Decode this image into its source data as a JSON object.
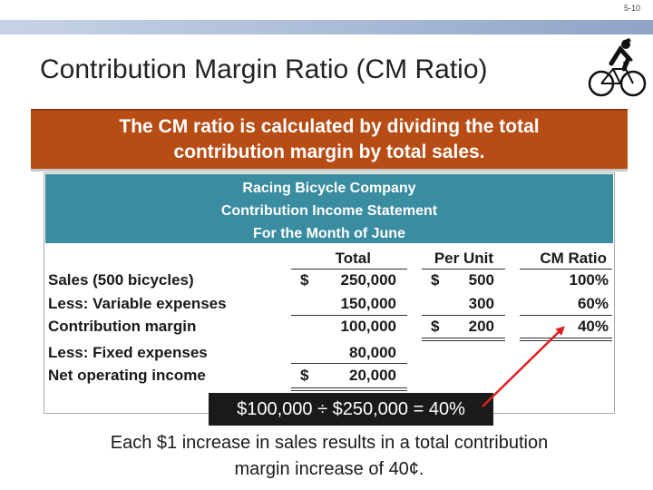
{
  "slide_number": "5-10",
  "title": "Contribution Margin Ratio (CM Ratio)",
  "callout": {
    "line1": "The CM ratio is calculated by dividing the total",
    "line2": "contribution margin by total sales."
  },
  "statement": {
    "company": "Racing Bicycle Company",
    "subtitle": "Contribution Income Statement",
    "period": "For the Month of June",
    "columns": {
      "total": "Total",
      "per_unit": "Per Unit",
      "cm_ratio": "CM Ratio"
    },
    "rows": {
      "sales": {
        "label": "Sales (500 bicycles)",
        "total_sym": "$",
        "total": "250,000",
        "unit_sym": "$",
        "unit": "500",
        "ratio": "100%"
      },
      "variable": {
        "label": "Less: Variable expenses",
        "total": "150,000",
        "unit": "300",
        "ratio": "60%"
      },
      "cm": {
        "label": "Contribution margin",
        "total": "100,000",
        "unit_sym": "$",
        "unit": "200",
        "ratio": "40%"
      },
      "fixed": {
        "label": "Less: Fixed expenses",
        "total": "80,000"
      },
      "noi": {
        "label": "Net operating income",
        "total_sym": "$",
        "total": "20,000"
      }
    }
  },
  "formula": "$100,000 ÷ $250,000 = 40%",
  "footer": {
    "line1": "Each $1 increase in sales results in a total contribution",
    "line2": "margin increase of 40¢."
  },
  "colors": {
    "callout": "#b84c15",
    "header": "#3a8ca0",
    "arrow": "#e0201e"
  }
}
